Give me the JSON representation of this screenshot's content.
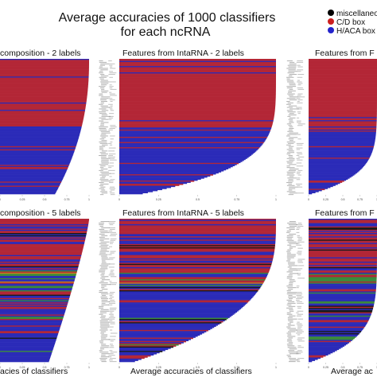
{
  "figure": {
    "title_line1": "Average accuracies of 1000 classifiers",
    "title_line2": "for each ncRNA"
  },
  "legend": {
    "entries": [
      {
        "label": "miscellaneous",
        "color": "#000000"
      },
      {
        "label": "C/D box",
        "color": "#cc1f1f"
      },
      {
        "label": "H/ACA box",
        "color": "#2323cc"
      }
    ]
  },
  "colors": {
    "cd_box": "#b32636",
    "haca_box": "#2b2bb8",
    "miscellaneous": "#1a1a1a",
    "accent_green": "#3a8a3a",
    "accent_orange": "#c8801e"
  },
  "chart_data": [
    {
      "type": "bar",
      "orientation": "horizontal",
      "title": "composition - 2 labels",
      "xlabel": "",
      "xlim": [
        0,
        1
      ],
      "tick_labels": [
        "0",
        "0.25",
        "0.5",
        "0.75",
        "1"
      ],
      "n_bars": 130,
      "accuracy_start": 1.0,
      "accuracy_end": 0.62,
      "decay_shape": 2.2,
      "class_pattern": "cd_top_haca_bottom",
      "fill": "red-blue"
    },
    {
      "type": "bar",
      "orientation": "horizontal",
      "title": "Features from IntaRNA - 2 labels",
      "xlabel": "",
      "xlim": [
        0,
        1
      ],
      "tick_labels": [
        "0",
        "0.25",
        "0.5",
        "0.75",
        "1"
      ],
      "n_bars": 130,
      "accuracy_start": 1.0,
      "accuracy_end": 0.15,
      "decay_shape": 5.0,
      "class_pattern": "cd_top_haca_bottom",
      "fill": "red-blue"
    },
    {
      "type": "bar",
      "orientation": "horizontal",
      "title": "Features from F",
      "xlabel": "",
      "xlim": [
        0,
        1
      ],
      "tick_labels": [
        "0",
        "0.25",
        "0.5",
        "0.75",
        "1"
      ],
      "n_bars": 130,
      "accuracy_start": 1.0,
      "accuracy_end": 0.05,
      "decay_shape": 7.0,
      "class_pattern": "cd_top_haca_bottom",
      "fill": "red-blue"
    },
    {
      "type": "bar",
      "orientation": "horizontal",
      "title": "composition - 5 labels",
      "xlabel": "acies of classifiers",
      "xlim": [
        0,
        1
      ],
      "tick_labels": [
        "0",
        "0.25",
        "0.5",
        "0.75",
        "1"
      ],
      "n_bars": 130,
      "accuracy_start": 1.0,
      "accuracy_end": 0.55,
      "decay_shape": 1.2,
      "class_pattern": "mixed_5",
      "fill": "mixed"
    },
    {
      "type": "bar",
      "orientation": "horizontal",
      "title": "Features from IntaRNA - 5 labels",
      "xlabel": "Average accuracies of classifiers",
      "xlim": [
        0,
        1
      ],
      "tick_labels": [
        "0",
        "0.25",
        "0.5",
        "0.75",
        "1"
      ],
      "n_bars": 130,
      "accuracy_start": 1.0,
      "accuracy_end": 0.1,
      "decay_shape": 3.0,
      "class_pattern": "mixed_5",
      "fill": "mixed"
    },
    {
      "type": "bar",
      "orientation": "horizontal",
      "title": "Features from F",
      "xlabel": "Average ac",
      "xlim": [
        0,
        1
      ],
      "tick_labels": [
        "0",
        "0.25",
        "0.5",
        "0.75",
        "1"
      ],
      "n_bars": 130,
      "accuracy_start": 1.0,
      "accuracy_end": 0.05,
      "decay_shape": 6.0,
      "class_pattern": "mixed_5",
      "fill": "mixed"
    }
  ]
}
